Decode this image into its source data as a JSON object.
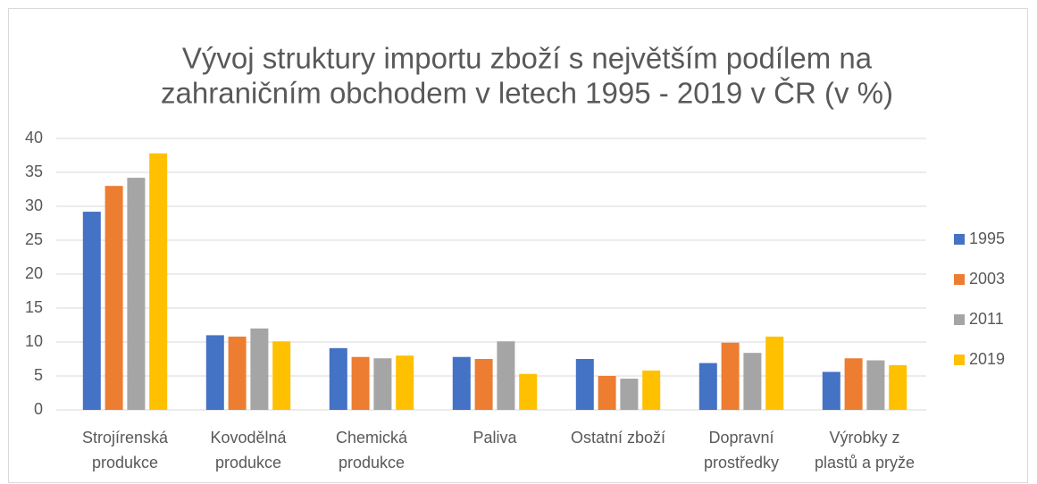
{
  "chart_data": {
    "type": "bar",
    "title": [
      "Vývoj struktury importu zboží s největším podílem na",
      "zahraničním obchodem v letech 1995 - 2019  v ČR (v %)"
    ],
    "categories": [
      [
        "Strojírenská",
        "produkce"
      ],
      [
        "Kovodělná",
        "produkce"
      ],
      [
        "Chemická",
        "produkce"
      ],
      [
        "Paliva"
      ],
      [
        "Ostatní zboží"
      ],
      [
        "Dopravní",
        "prostředky"
      ],
      [
        "Výrobky z",
        "plastů a pryže"
      ]
    ],
    "series": [
      {
        "name": "1995",
        "color": "#4472c4",
        "values": [
          29.2,
          11,
          9.1,
          7.8,
          7.5,
          6.9,
          5.6
        ]
      },
      {
        "name": "2003",
        "color": "#ed7d31",
        "values": [
          33,
          10.8,
          7.8,
          7.5,
          5,
          9.9,
          7.6
        ]
      },
      {
        "name": "2011",
        "color": "#a5a5a5",
        "values": [
          34.2,
          12,
          7.6,
          10.1,
          4.6,
          8.4,
          7.3
        ]
      },
      {
        "name": "2019",
        "color": "#ffc000",
        "values": [
          37.8,
          10.1,
          8,
          5.3,
          5.8,
          10.8,
          6.6
        ]
      }
    ],
    "ylim": [
      0,
      40
    ],
    "yticks": [
      0,
      5,
      10,
      15,
      20,
      25,
      30,
      35,
      40
    ],
    "grid": true,
    "legend": "right"
  }
}
